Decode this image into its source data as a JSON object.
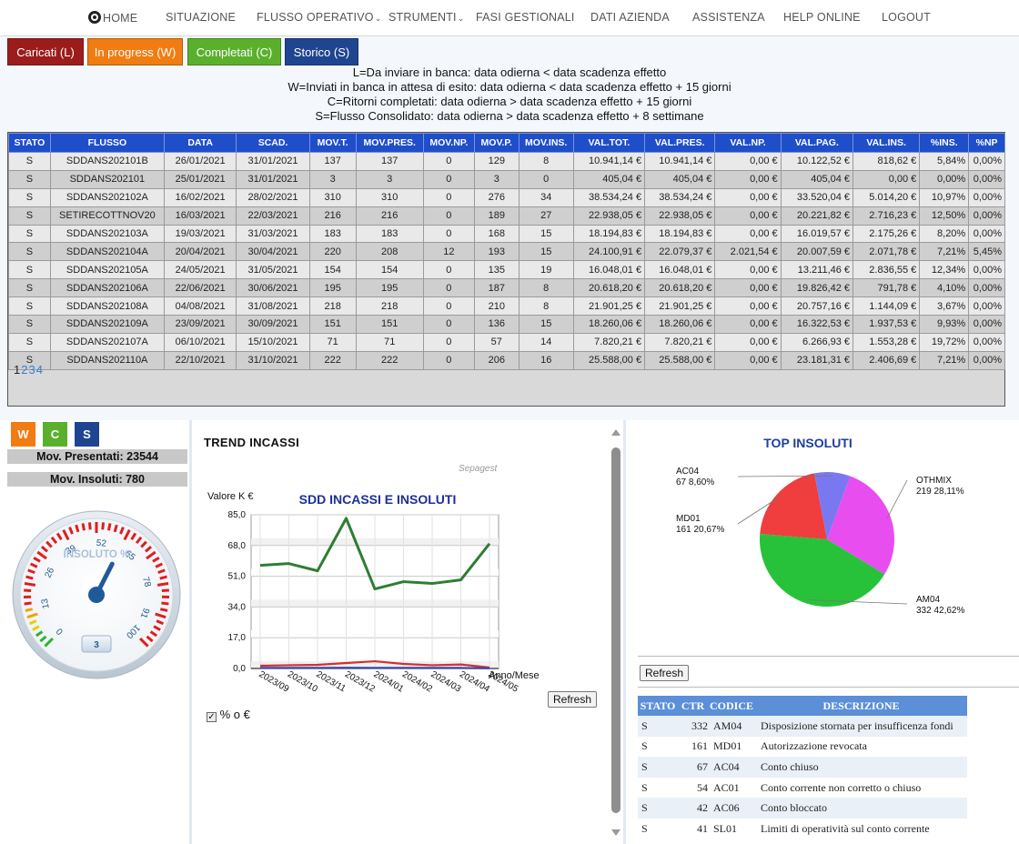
{
  "nav": {
    "home": "HOME",
    "items": [
      "SITUAZIONE",
      "FLUSSO OPERATIVO",
      "STRUMENTI",
      "FASI GESTIONALI",
      "DATI AZIENDA",
      "ASSISTENZA",
      "HELP ONLINE",
      "LOGOUT"
    ]
  },
  "filters": [
    {
      "label": "Caricati (L)",
      "color": "#9c1c1c"
    },
    {
      "label": "In progress (W)",
      "color": "#f07c12"
    },
    {
      "label": "Completati (C)",
      "color": "#5ab02c"
    },
    {
      "label": "Storico (S)",
      "color": "#1f4591"
    }
  ],
  "legend": [
    "L=Da inviare in banca: data odierna < data scadenza effetto",
    "W=Inviati in banca in attesa di esito: data odierna < data scadenza effetto + 15 giorni",
    "C=Ritorni completati: data odierna > data scadenza effetto + 15 giorni",
    "S=Flusso Consolidato: data odierna > data scadenza effetto + 8 settimane"
  ],
  "table": {
    "headers": [
      "STATO",
      "FLUSSO",
      "DATA",
      "SCAD.",
      "MOV.T.",
      "MOV.PRES.",
      "MOV.NP.",
      "MOV.P.",
      "MOV.INS.",
      "VAL.TOT.",
      "VAL.PRES.",
      "VAL.NP.",
      "VAL.PAG.",
      "VAL.INS.",
      "%INS.",
      "%NP"
    ],
    "rows": [
      [
        "S",
        "SDDANS202101B",
        "26/01/2021",
        "31/01/2021",
        "137",
        "137",
        "0",
        "129",
        "8",
        "10.941,14 €",
        "10.941,14 €",
        "0,00 €",
        "10.122,52 €",
        "818,62 €",
        "5,84%",
        "0,00%"
      ],
      [
        "S",
        "SDDANS202101",
        "25/01/2021",
        "31/01/2021",
        "3",
        "3",
        "0",
        "3",
        "0",
        "405,04 €",
        "405,04 €",
        "0,00 €",
        "405,04 €",
        "0,00 €",
        "0,00%",
        "0,00%"
      ],
      [
        "S",
        "SDDANS202102A",
        "16/02/2021",
        "28/02/2021",
        "310",
        "310",
        "0",
        "276",
        "34",
        "38.534,24 €",
        "38.534,24 €",
        "0,00 €",
        "33.520,04 €",
        "5.014,20 €",
        "10,97%",
        "0,00%"
      ],
      [
        "S",
        "SETIRECOTTNOV20",
        "16/03/2021",
        "22/03/2021",
        "216",
        "216",
        "0",
        "189",
        "27",
        "22.938,05 €",
        "22.938,05 €",
        "0,00 €",
        "20.221,82 €",
        "2.716,23 €",
        "12,50%",
        "0,00%"
      ],
      [
        "S",
        "SDDANS202103A",
        "19/03/2021",
        "31/03/2021",
        "183",
        "183",
        "0",
        "168",
        "15",
        "18.194,83 €",
        "18.194,83 €",
        "0,00 €",
        "16.019,57 €",
        "2.175,26 €",
        "8,20%",
        "0,00%"
      ],
      [
        "S",
        "SDDANS202104A",
        "20/04/2021",
        "30/04/2021",
        "220",
        "208",
        "12",
        "193",
        "15",
        "24.100,91 €",
        "22.079,37 €",
        "2.021,54 €",
        "20.007,59 €",
        "2.071,78 €",
        "7,21%",
        "5,45%"
      ],
      [
        "S",
        "SDDANS202105A",
        "24/05/2021",
        "31/05/2021",
        "154",
        "154",
        "0",
        "135",
        "19",
        "16.048,01 €",
        "16.048,01 €",
        "0,00 €",
        "13.211,46 €",
        "2.836,55 €",
        "12,34%",
        "0,00%"
      ],
      [
        "S",
        "SDDANS202106A",
        "22/06/2021",
        "30/06/2021",
        "195",
        "195",
        "0",
        "187",
        "8",
        "20.618,20 €",
        "20.618,20 €",
        "0,00 €",
        "19.826,42 €",
        "791,78 €",
        "4,10%",
        "0,00%"
      ],
      [
        "S",
        "SDDANS202108A",
        "04/08/2021",
        "31/08/2021",
        "218",
        "218",
        "0",
        "210",
        "8",
        "21.901,25 €",
        "21.901,25 €",
        "0,00 €",
        "20.757,16 €",
        "1.144,09 €",
        "3,67%",
        "0,00%"
      ],
      [
        "S",
        "SDDANS202109A",
        "23/09/2021",
        "30/09/2021",
        "151",
        "151",
        "0",
        "136",
        "15",
        "18.260,06 €",
        "18.260,06 €",
        "0,00 €",
        "16.322,53 €",
        "1.937,53 €",
        "9,93%",
        "0,00%"
      ],
      [
        "S",
        "SDDANS202107A",
        "06/10/2021",
        "15/10/2021",
        "71",
        "71",
        "0",
        "57",
        "14",
        "7.820,21 €",
        "7.820,21 €",
        "0,00 €",
        "6.266,93 €",
        "1.553,28 €",
        "19,72%",
        "0,00%"
      ],
      [
        "S",
        "SDDANS202110A",
        "22/10/2021",
        "31/10/2021",
        "222",
        "222",
        "0",
        "206",
        "16",
        "25.588,00 €",
        "25.588,00 €",
        "0,00 €",
        "23.181,31 €",
        "2.406,69 €",
        "7,21%",
        "0,00%"
      ]
    ],
    "pages": [
      "1",
      "2",
      "3",
      "4"
    ]
  },
  "left": {
    "buttons": [
      {
        "label": "W",
        "color": "#f07c12"
      },
      {
        "label": "C",
        "color": "#5ab02c"
      },
      {
        "label": "S",
        "color": "#1f4591"
      }
    ],
    "presentati": "Mov. Presentati: 23544",
    "insoluti": "Mov. Insoluti: 780",
    "gauge": {
      "title": "INSOLUTO %",
      "ticks": [
        "0",
        "13",
        "26",
        "39",
        "52",
        "65",
        "78",
        "91",
        "100"
      ],
      "value": 3,
      "value_label": "3"
    }
  },
  "trend": {
    "title": "TREND INCASSI",
    "refresh": "Refresh",
    "checkbox_label": "% o €",
    "checkbox_checked": true
  },
  "chart_data": [
    {
      "type": "line",
      "title": "SDD INCASSI E INSOLUTI",
      "watermark": "Sepagest",
      "ylabel": "Valore K €",
      "xlabel": "Anno/Mese",
      "ylim": [
        0,
        85
      ],
      "yticks": [
        "0,0",
        "17,0",
        "34,0",
        "51,0",
        "68,0",
        "85,0"
      ],
      "categories": [
        "2023/09",
        "2023/10",
        "2023/11",
        "2023/12",
        "2024/01",
        "2024/02",
        "2024/03",
        "2024/04",
        "2024/05"
      ],
      "series": [
        {
          "color": "#2e7d32",
          "values": [
            57,
            58,
            54,
            83,
            44,
            48,
            47,
            49,
            69
          ]
        },
        {
          "color": "#d32f2f",
          "values": [
            1.5,
            1.8,
            2.0,
            3.0,
            4.0,
            2.5,
            1.8,
            2.2,
            0.5
          ]
        },
        {
          "color": "#3949ab",
          "values": [
            0.3,
            0.3,
            0.3,
            0.4,
            0.3,
            0.3,
            0.3,
            0.3,
            0.1
          ]
        }
      ],
      "grid": true
    },
    {
      "type": "pie",
      "title": "TOP INSOLUTI",
      "slices": [
        {
          "label": "OTHMIX",
          "count": 219,
          "pct": "28,11%",
          "value": 28.11,
          "color": "#e84df0"
        },
        {
          "label": "AM04",
          "count": 332,
          "pct": "42,62%",
          "value": 42.62,
          "color": "#27c23a"
        },
        {
          "label": "MD01",
          "count": 161,
          "pct": "20,67%",
          "value": 20.67,
          "color": "#f03d3d"
        },
        {
          "label": "AC04",
          "count": 67,
          "pct": "8,60%",
          "value": 8.6,
          "color": "#7a78f0"
        }
      ]
    }
  ],
  "right": {
    "refresh": "Refresh",
    "headers": [
      "STATO",
      "CTR",
      "CODICE",
      "DESCRIZIONE"
    ],
    "rows": [
      [
        "S",
        "332",
        "AM04",
        "Disposizione stornata per insufficenza fondi"
      ],
      [
        "S",
        "161",
        "MD01",
        "Autorizzazione revocata"
      ],
      [
        "S",
        "67",
        "AC04",
        "Conto chiuso"
      ],
      [
        "S",
        "54",
        "AC01",
        "Conto corrente non corretto o chiuso"
      ],
      [
        "S",
        "42",
        "AC06",
        "Conto bloccato"
      ],
      [
        "S",
        "41",
        "SL01",
        "Limiti di operatività sul conto corrente"
      ]
    ]
  }
}
